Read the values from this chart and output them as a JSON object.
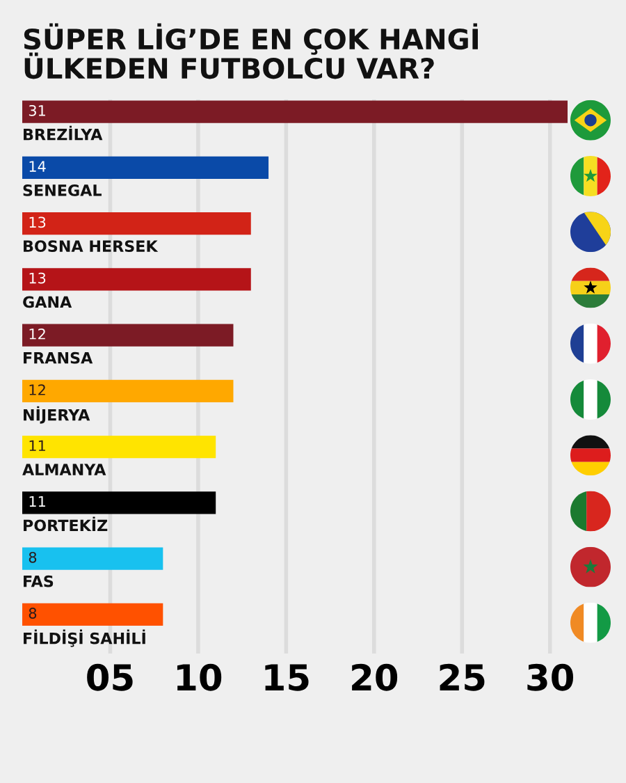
{
  "chart_data": {
    "type": "bar",
    "orientation": "horizontal",
    "title": "SÜPER LİG’DE EN ÇOK HANGİ\nÜLKEDEN FUTBOLCU VAR?",
    "categories": [
      "BREZİLYA",
      "SENEGAL",
      "BOSNA HERSEK",
      "GANA",
      "FRANSA",
      "NİJERYA",
      "ALMANYA",
      "PORTEKİZ",
      "FAS",
      "FİLDİŞİ SAHİLİ"
    ],
    "values": [
      31,
      14,
      13,
      13,
      12,
      12,
      11,
      11,
      8,
      8
    ],
    "colors": [
      "#7c1b25",
      "#0a4aa8",
      "#d22317",
      "#b51418",
      "#7c1b25",
      "#ffa800",
      "#ffe400",
      "#000000",
      "#18c1ef",
      "#ff5100"
    ],
    "xlim": [
      0,
      31
    ],
    "xticks": [
      {
        "value": 5,
        "label": "05"
      },
      10,
      15,
      20,
      25,
      30
    ],
    "grid": "x",
    "data_labels": true
  }
}
